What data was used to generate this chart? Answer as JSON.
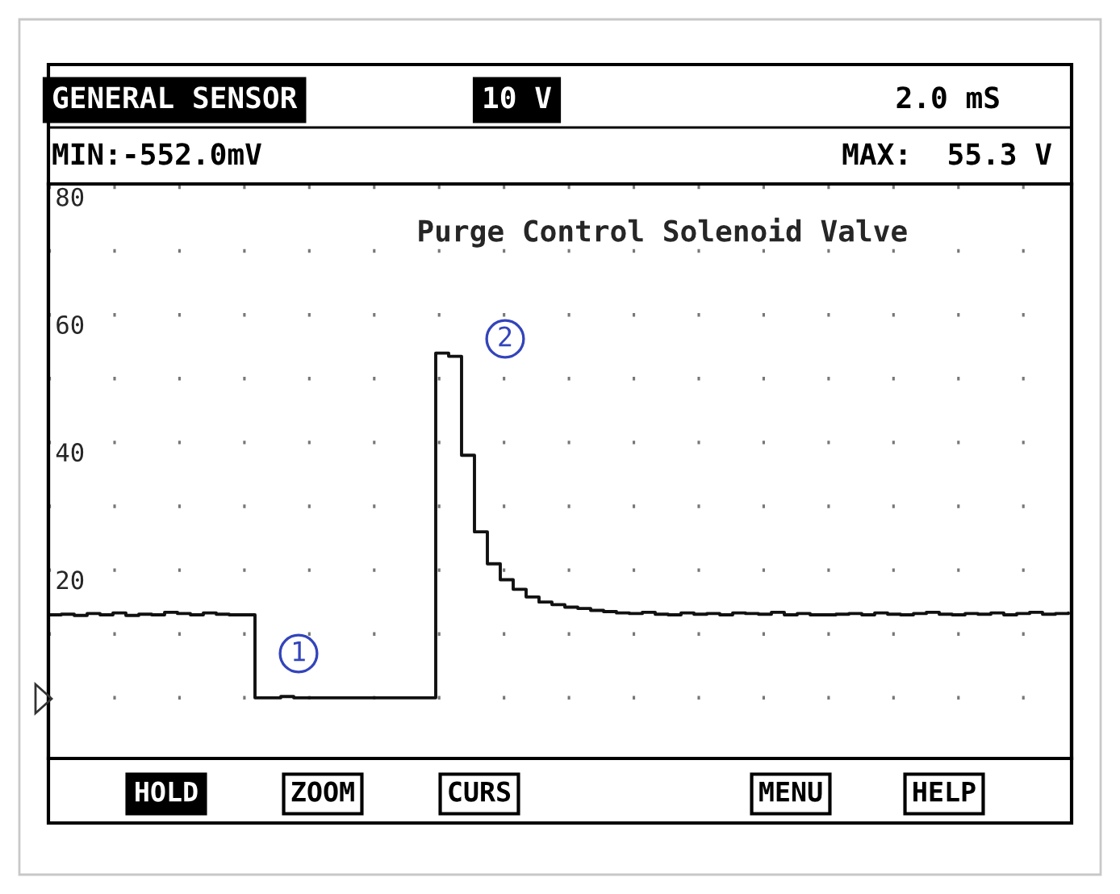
{
  "chart_data": {
    "type": "step",
    "title": "Purge Control Solenoid Valve",
    "categories": [
      null,
      null,
      null,
      null,
      null,
      null,
      null,
      null,
      null,
      null,
      null,
      null,
      null,
      null,
      null,
      null,
      null,
      null,
      null,
      null,
      null,
      null,
      null,
      null,
      null,
      null,
      null,
      null,
      null,
      null,
      null,
      null,
      null,
      null,
      null,
      null,
      null,
      null,
      null,
      null,
      null,
      null,
      null,
      null,
      null,
      null,
      null,
      null,
      null,
      null,
      null,
      null,
      null,
      null,
      null,
      null,
      null,
      null,
      null,
      null,
      null,
      null,
      null,
      null,
      null,
      null,
      null,
      null,
      null,
      null,
      null,
      null,
      null,
      null,
      null,
      null,
      null,
      null,
      null,
      null
    ],
    "series": [
      {
        "color": "#111111",
        "values": [
          13.0,
          13.1,
          12.9,
          13.2,
          13.0,
          13.3,
          12.9,
          13.1,
          13.0,
          13.4,
          13.2,
          13.0,
          13.3,
          13.1,
          13.0,
          13.0,
          0,
          0,
          0.2,
          0,
          0,
          0,
          0,
          0,
          0,
          0,
          0,
          0,
          0,
          0,
          54,
          53.5,
          38,
          26,
          21,
          18.5,
          17,
          15.8,
          15,
          14.6,
          14.2,
          14,
          13.7,
          13.5,
          13.3,
          13.2,
          13.4,
          13.1,
          13.0,
          13.3,
          13.1,
          13.2,
          13.0,
          13.3,
          13.2,
          13.1,
          13.4,
          13.0,
          13.2,
          13.0,
          13.0,
          13.1,
          13.2,
          13.0,
          13.3,
          13.1,
          13.0,
          13.2,
          13.4,
          13.1,
          13.0,
          13.2,
          13.1,
          13.3,
          13.0,
          13.2,
          13.4,
          13.1,
          13.2,
          13.3
        ]
      }
    ],
    "ylim": [
      -9.5,
      80.5
    ],
    "yticks": [
      {
        "value": 0,
        "label": null
      },
      {
        "value": 10,
        "label": null
      },
      20,
      {
        "value": 30,
        "label": null
      },
      40,
      {
        "value": 50,
        "label": null
      },
      60,
      {
        "value": 70,
        "label": null
      },
      80
    ],
    "grid": "y",
    "annotations": [
      "GENERAL SENSOR",
      "10 V",
      "2.0 mS",
      "MIN:-552.0mV",
      "MAX:  55.3 V",
      "HOLD",
      "ZOOM",
      "CURS",
      "MENU",
      "HELP",
      "1",
      "2"
    ]
  }
}
